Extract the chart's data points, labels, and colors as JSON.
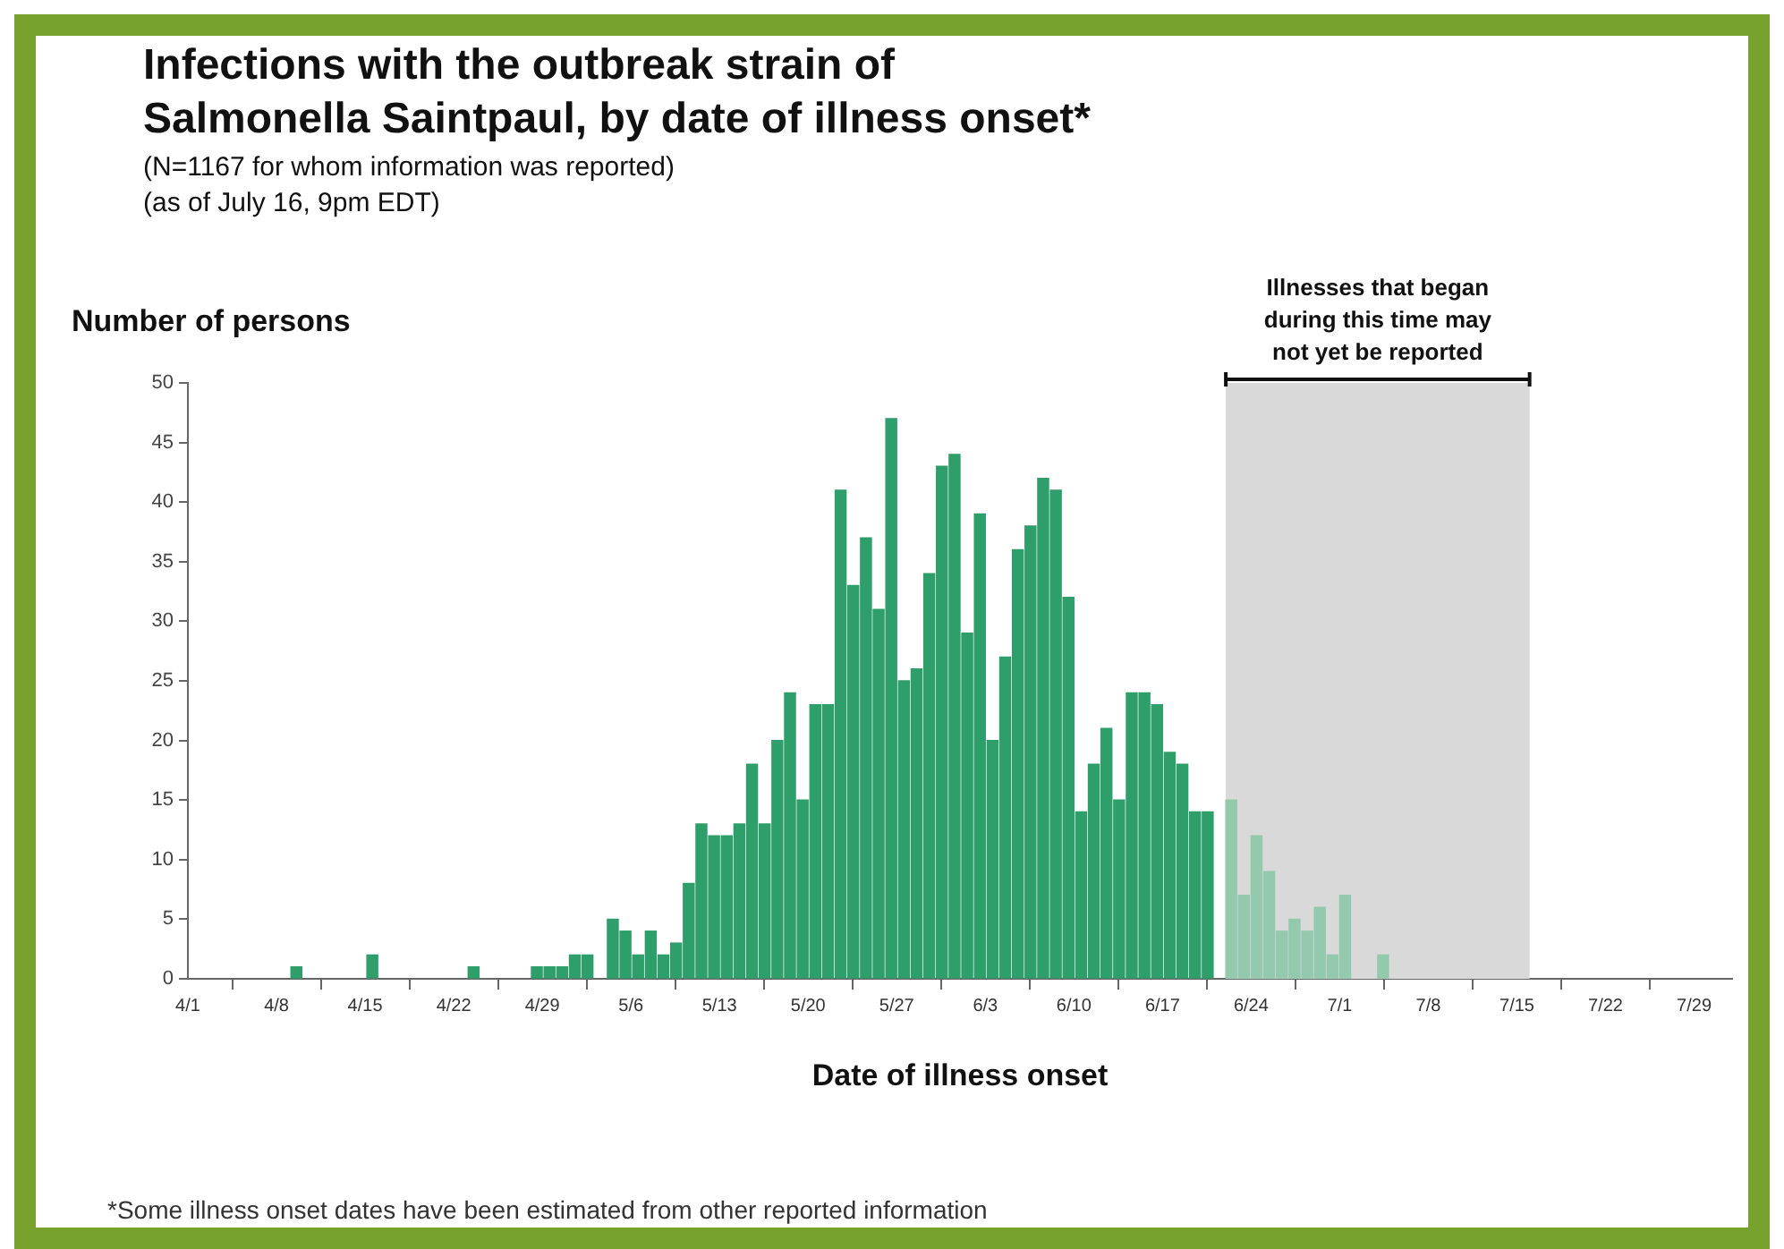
{
  "chart_data": {
    "type": "bar",
    "title": "Infections with the outbreak strain of Salmonella Saintpaul, by date of illness onset*",
    "subtitle": "(N=1167 for whom information was reported)\n(as of July 16, 9pm EDT)",
    "xlabel": "Date of illness onset",
    "ylabel": "Number of persons",
    "annotations": [
      "*Some illness onset dates have been estimated from other reported information"
    ],
    "series": [
      {
        "color": "#2e9e6b",
        "x": [
          "--04-10",
          "--04-16",
          "--04-24",
          "--04-29",
          "--04-30",
          "--05-01",
          "--05-02",
          "--05-03",
          "--05-05",
          "--05-06",
          "--05-07",
          "--05-08",
          "--05-09",
          "--05-10",
          "--05-11",
          "--05-12",
          "--05-13",
          "--05-14",
          "--05-15",
          "--05-16",
          "--05-17",
          "--05-18",
          "--05-19",
          "--05-20",
          "--05-21",
          "--05-22",
          "--05-23",
          "--05-24",
          "--05-25",
          "--05-26",
          "--05-27",
          "--05-28",
          "--05-29",
          "--05-30",
          "--05-31",
          "--06-01",
          "--06-02",
          "--06-03",
          "--06-04",
          "--06-05",
          "--06-06",
          "--06-07",
          "--06-08",
          "--06-09",
          "--06-10",
          "--06-11",
          "--06-12",
          "--06-13",
          "--06-14",
          "--06-15",
          "--06-16",
          "--06-17",
          "--06-18",
          "--06-19",
          "--06-20",
          "--06-21"
        ],
        "values": [
          1,
          2,
          1,
          1,
          1,
          1,
          2,
          2,
          5,
          4,
          2,
          4,
          2,
          3,
          8,
          13,
          12,
          12,
          13,
          18,
          13,
          20,
          24,
          15,
          23,
          23,
          41,
          33,
          37,
          31,
          47,
          25,
          26,
          34,
          43,
          44,
          29,
          39,
          20,
          27,
          36,
          38,
          42,
          41,
          32,
          14,
          18,
          21,
          15,
          24,
          24,
          23,
          19,
          18,
          14,
          14
        ]
      },
      {
        "color": "#93c9ad",
        "x": [
          "--06-22",
          "--06-23",
          "--06-24",
          "--06-25",
          "--06-26",
          "--06-27",
          "--06-28",
          "--06-29",
          "--06-30",
          "--07-01",
          "--07-04"
        ],
        "values": [
          15,
          7,
          12,
          9,
          4,
          5,
          4,
          6,
          2,
          7,
          2
        ]
      }
    ],
    "xlim": [
      "--04-01",
      "--08-01"
    ],
    "xticks": [
      {
        "value": "--04-01",
        "label": "4/1"
      },
      {
        "value": "--04-08",
        "label": "4/8"
      },
      {
        "value": "--04-15",
        "label": "4/15"
      },
      {
        "value": "--04-22",
        "label": "4/22"
      },
      {
        "value": "--04-29",
        "label": "4/29"
      },
      {
        "value": "--05-06",
        "label": "5/6"
      },
      {
        "value": "--05-13",
        "label": "5/13"
      },
      {
        "value": "--05-20",
        "label": "5/20"
      },
      {
        "value": "--05-27",
        "label": "5/27"
      },
      {
        "value": "--06-03",
        "label": "6/3"
      },
      {
        "value": "--06-10",
        "label": "6/10"
      },
      {
        "value": "--06-17",
        "label": "6/17"
      },
      {
        "value": "--06-24",
        "label": "6/24"
      },
      {
        "value": "--07-01",
        "label": "7/1"
      },
      {
        "value": "--07-08",
        "label": "7/8"
      },
      {
        "value": "--07-15",
        "label": "7/15"
      },
      {
        "value": "--07-22",
        "label": "7/22"
      },
      {
        "value": "--07-29",
        "label": "7/29"
      }
    ],
    "ylim": [
      0,
      50
    ],
    "yticks": [
      0,
      5,
      10,
      15,
      20,
      25,
      30,
      35,
      40,
      45,
      50
    ],
    "bands": [
      {
        "axis": "x",
        "from": "--06-22",
        "to": "--07-16",
        "label": "Illnesses that began during this time may not yet be reported",
        "color": "#d9d9d9"
      }
    ],
    "grid": false,
    "legend": false
  }
}
